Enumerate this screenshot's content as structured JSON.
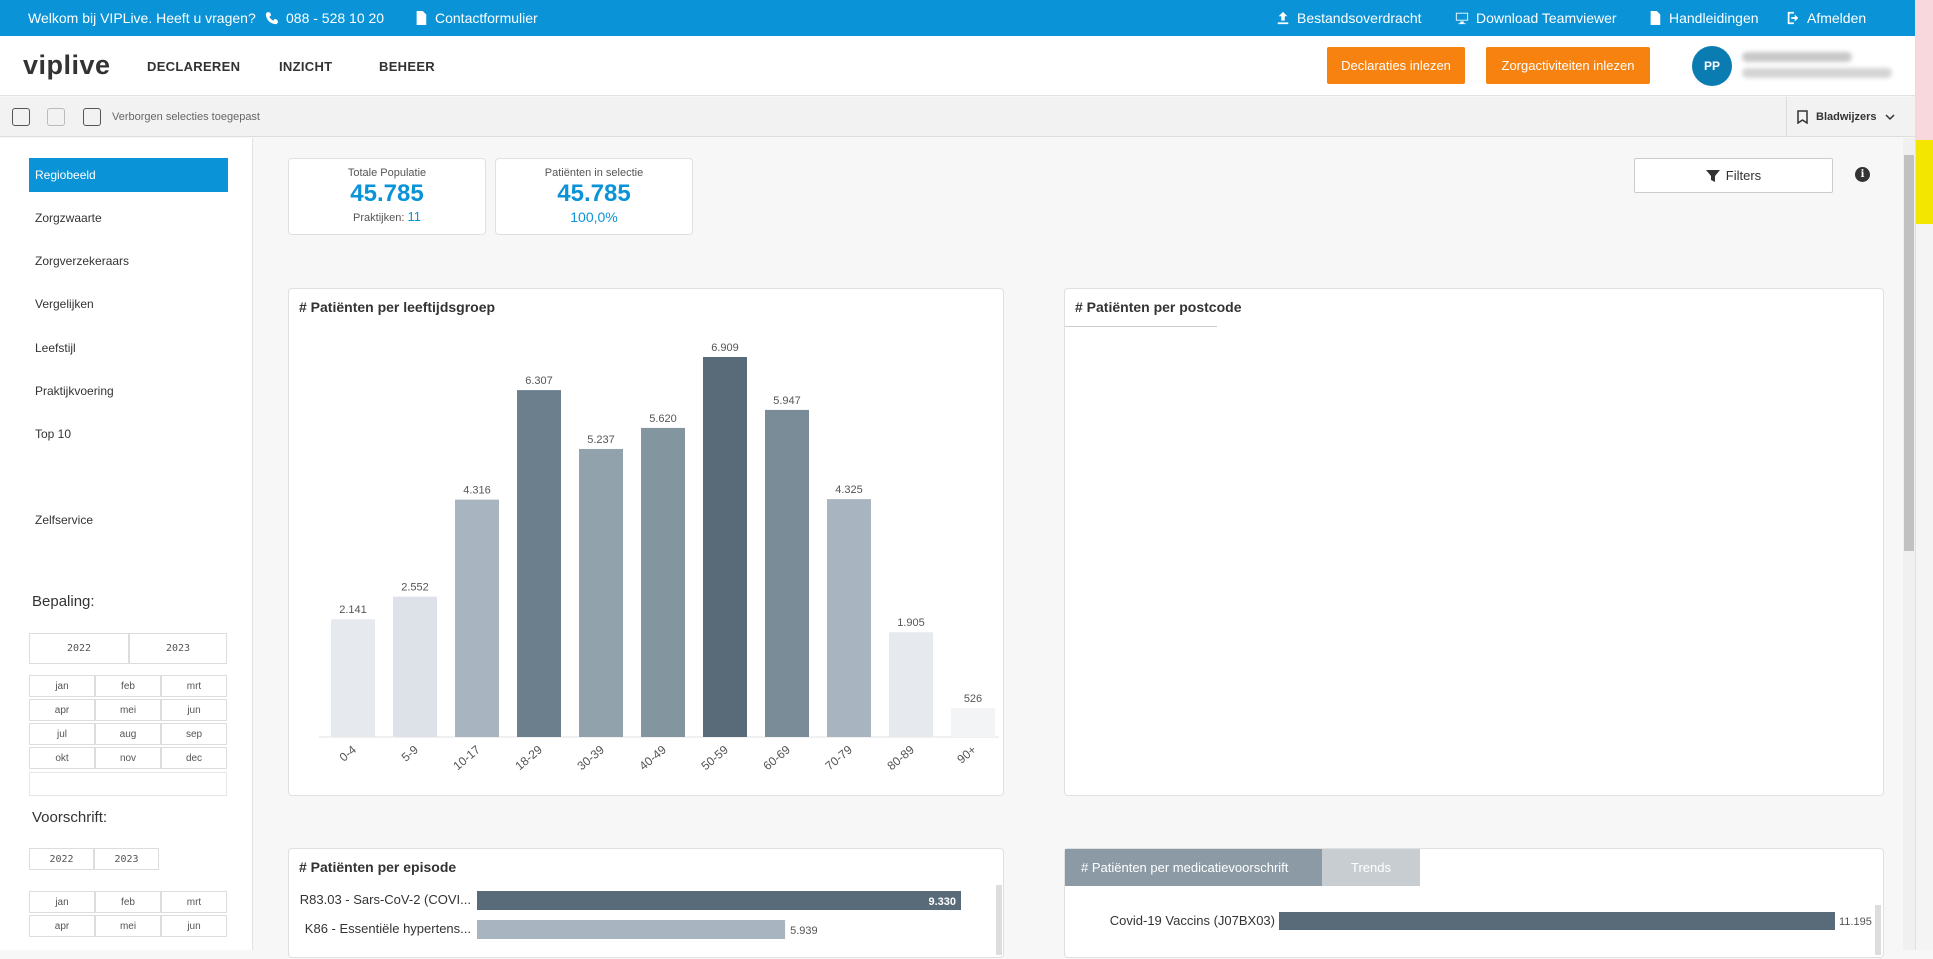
{
  "topbar": {
    "welcome": "Welkom bij VIPLive. Heeft u vragen?",
    "phone": "088 - 528 10 20",
    "contact": "Contactformulier",
    "transfer": "Bestandsoverdracht",
    "teamviewer": "Download Teamviewer",
    "manuals": "Handleidingen",
    "logout": "Afmelden"
  },
  "nav": {
    "logo": "viplive",
    "links": [
      "DECLAREREN",
      "INZICHT",
      "BEHEER"
    ],
    "btn_declaraties": "Declaraties inlezen",
    "btn_zorgactiviteiten": "Zorgactiviteiten inlezen",
    "avatar": "PP"
  },
  "selection": {
    "text": "Verborgen selecties toegepast",
    "bookmarks": "Bladwijzers"
  },
  "sidebar": {
    "items": [
      "Regiobeeld",
      "Zorgzwaarte",
      "Zorgverzekeraars",
      "Vergelijken",
      "Leefstijl",
      "Praktijkvoering",
      "Top 10"
    ],
    "selfservice": "Zelfservice",
    "bepaling": "Bepaling:",
    "voorschrift": "Voorschrift:",
    "years": [
      "2022",
      "2023"
    ],
    "months": [
      "jan",
      "feb",
      "mrt",
      "apr",
      "mei",
      "jun",
      "jul",
      "aug",
      "sep",
      "okt",
      "nov",
      "dec"
    ]
  },
  "kpi": {
    "total_label": "Totale Populatie",
    "total_value": "45.785",
    "practices_label": "Praktijken:",
    "practices_value": "11",
    "selection_label": "Patiënten in selectie",
    "selection_value": "45.785",
    "selection_pct": "100,0%"
  },
  "filters": {
    "label": "Filters"
  },
  "cards": {
    "age_title": "# Patiënten per leeftijdsgroep",
    "postcode_title": "# Patiënten per postcode",
    "episode_title": "# Patiënten per episode",
    "med_tab_active": "# Patiënten per medicatievoorschrift",
    "med_tab_trends": "Trends"
  },
  "colors": {
    "brand_blue": "#0a93d7",
    "orange": "#f7820f"
  },
  "chart_data": [
    {
      "type": "bar",
      "title": "# Patiënten per leeftijdsgroep",
      "categories": [
        "0-4",
        "5-9",
        "10-17",
        "18-29",
        "30-39",
        "40-49",
        "50-59",
        "60-69",
        "70-79",
        "80-89",
        "90+"
      ],
      "values": [
        2141,
        2552,
        4316,
        6307,
        5237,
        5620,
        6909,
        5947,
        4325,
        1905,
        526
      ],
      "labels": [
        "2.141",
        "2.552",
        "4.316",
        "6.307",
        "5.237",
        "5.620",
        "6.909",
        "5.947",
        "4.325",
        "1.905",
        "526"
      ],
      "colors": [
        "#e6e9ee",
        "#dde2e8",
        "#a8b5c0",
        "#6b7f8d",
        "#91a2ad",
        "#83959f",
        "#596b78",
        "#7a8c98",
        "#a8b5c0",
        "#e6e9ee",
        "#f3f4f6"
      ],
      "ylim": [
        0,
        6909
      ]
    },
    {
      "type": "bar",
      "title": "# Patiënten per episode",
      "categories": [
        "R83.03 - Sars-CoV-2 (COVI...",
        "K86 - Essentiële hypertens..."
      ],
      "values": [
        9330,
        5939
      ],
      "labels": [
        "9.330",
        "5.939"
      ],
      "colors": [
        "#596b78",
        "#a8b5c0"
      ]
    },
    {
      "type": "bar",
      "title": "# Patiënten per medicatievoorschrift",
      "categories": [
        "Covid-19 Vaccins (J07BX03)"
      ],
      "values": [
        11195
      ],
      "labels": [
        "11.195"
      ],
      "colors": [
        "#596b78"
      ]
    }
  ]
}
